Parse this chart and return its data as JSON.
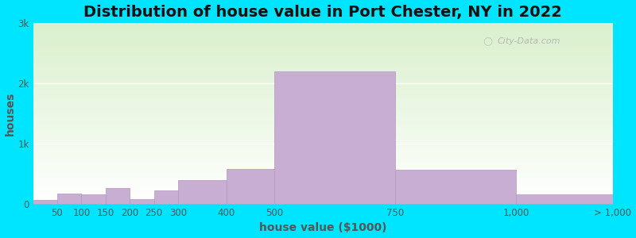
{
  "title": "Distribution of house value in Port Chester, NY in 2022",
  "xlabel": "house value ($1000)",
  "ylabel": "houses",
  "bar_color": "#c9aed4",
  "bar_edgecolor": "#b099bc",
  "background_outer": "#00e5ff",
  "background_top": "#d8eece",
  "background_bottom": "#ffffff",
  "yticks": [
    0,
    1000,
    2000,
    3000
  ],
  "ytick_labels": [
    "0",
    "1k",
    "2k",
    "3k"
  ],
  "ylim": [
    0,
    3000
  ],
  "edges": [
    0,
    50,
    100,
    150,
    200,
    250,
    300,
    400,
    500,
    750,
    1000,
    1200
  ],
  "tick_labels": [
    "50",
    "100",
    "150",
    "200",
    "250",
    "300",
    "400",
    "500",
    "750",
    "1,000",
    "> 1,000"
  ],
  "values": [
    70,
    170,
    155,
    265,
    80,
    220,
    390,
    580,
    2200,
    570,
    155
  ],
  "title_fontsize": 14,
  "axis_label_fontsize": 10,
  "tick_fontsize": 8.5,
  "watermark": "City-Data.com"
}
